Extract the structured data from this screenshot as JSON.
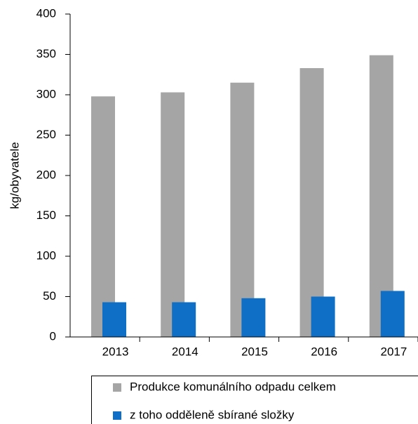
{
  "chart_data": {
    "type": "bar",
    "y_label": "kg/obyvatele",
    "categories": [
      "2013",
      "2014",
      "2015",
      "2016",
      "2017"
    ],
    "series": [
      {
        "name": "Produkce komunálního odpadu celkem",
        "color": "#a5a5a5",
        "values": [
          298,
          303,
          315,
          333,
          349
        ]
      },
      {
        "name": "z toho odděleně sbírané složky",
        "color": "#0f6fc6",
        "values": [
          43,
          43,
          48,
          50,
          57
        ]
      }
    ],
    "ylim": [
      0,
      400
    ],
    "yticks": [
      0,
      50,
      100,
      150,
      200,
      250,
      300,
      350,
      400
    ],
    "grid": false
  }
}
